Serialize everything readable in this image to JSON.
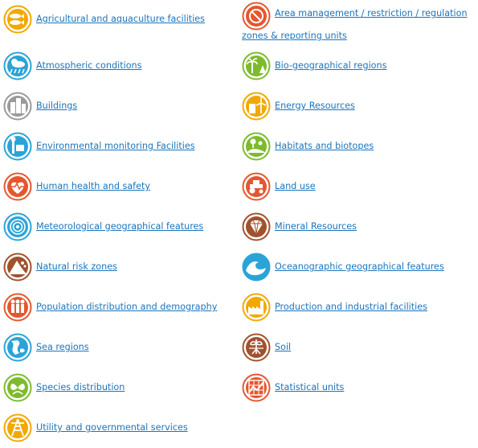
{
  "themes": {
    "left": [
      {
        "label": "Agricultural and aquaculture facilities",
        "icon": "agriculture-fish-icon",
        "color": "#f2a800"
      },
      {
        "label": "Atmospheric conditions",
        "icon": "weather-cloud-rain-icon",
        "color": "#2aa4d8"
      },
      {
        "label": "Buildings",
        "icon": "buildings-icon",
        "color": "#9a9a9a"
      },
      {
        "label": "Environmental monitoring Facilities",
        "icon": "monitoring-station-icon",
        "color": "#2aa4d8"
      },
      {
        "label": "Human health and safety",
        "icon": "heart-health-icon",
        "color": "#e4572e"
      },
      {
        "label": "Meteorological geographical features",
        "icon": "wind-swirl-icon",
        "color": "#2aa4d8"
      },
      {
        "label": "Natural risk zones",
        "icon": "landslide-icon",
        "color": "#a0522d"
      },
      {
        "label": "Population distribution and demography",
        "icon": "people-icon",
        "color": "#e4572e"
      },
      {
        "label": "Sea regions",
        "icon": "sea-map-icon",
        "color": "#2aa4d8"
      },
      {
        "label": "Species distribution",
        "icon": "butterfly-leaf-icon",
        "color": "#7dbb2c"
      },
      {
        "label": "Utility and governmental services",
        "icon": "power-tower-icon",
        "color": "#f2a800"
      }
    ],
    "right": [
      {
        "label": "Area management / restriction / regulation zones & reporting units",
        "icon": "restriction-zone-icon",
        "color": "#e4572e"
      },
      {
        "label": "Bio-geographical regions",
        "icon": "palm-trees-icon",
        "color": "#7dbb2c"
      },
      {
        "label": "Energy Resources",
        "icon": "wind-turbine-icon",
        "color": "#f2a800"
      },
      {
        "label": "Habitats and biotopes",
        "icon": "hills-trees-icon",
        "color": "#7dbb2c"
      },
      {
        "label": "Land use",
        "icon": "tractor-icon",
        "color": "#e4572e"
      },
      {
        "label": "Mineral Resources",
        "icon": "diamond-icon",
        "color": "#a0522d"
      },
      {
        "label": "Oceanographic geographical features",
        "icon": "wave-icon",
        "color": "#2aa4d8"
      },
      {
        "label": "Production and industrial facilities",
        "icon": "factory-icon",
        "color": "#f2a800"
      },
      {
        "label": "Soil",
        "icon": "plant-roots-icon",
        "color": "#a0522d"
      },
      {
        "label": "Statistical units",
        "icon": "chart-grid-icon",
        "color": "#e4572e"
      }
    ]
  }
}
